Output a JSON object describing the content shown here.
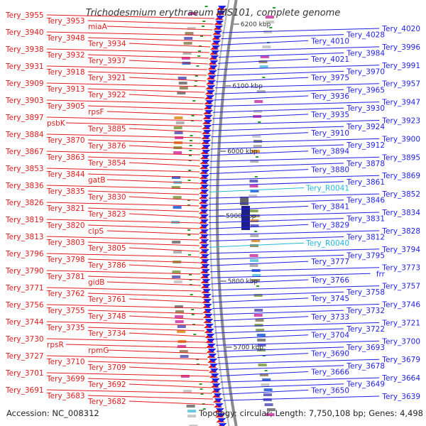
{
  "title": "Trichodesmium erythraeum IMS101, complete genome",
  "footer": {
    "accession": "Accession: NC_008312",
    "summary": "Topology: circular; Length: 7,750,108 bp; Genes: 4,498"
  },
  "colors": {
    "reverse_strand": "#e31a1c",
    "forward_strand": "#1f1fe6",
    "rna": "#22b7d8",
    "backbone": "#8c8c8c"
  },
  "scale_labels": [
    "6200 kbp",
    "6100 kbp",
    "6000 kbp",
    "5900 kbp",
    "5800 kbp",
    "5700 kbp"
  ],
  "left_labels": [
    "Tery_3955",
    "Tery_3953",
    "miaA",
    "Tery_3940",
    "Tery_3948",
    "Tery_3934",
    "Tery_3938",
    "Tery_3932",
    "Tery_3937",
    "Tery_3931",
    "Tery_3918",
    "Tery_3921",
    "Tery_3909",
    "Tery_3913",
    "Tery_3922",
    "Tery_3903",
    "Tery_3905",
    "rpsF",
    "Tery_3897",
    "psbK",
    "Tery_3885",
    "Tery_3884",
    "Tery_3870",
    "Tery_3876",
    "Tery_3867",
    "Tery_3863",
    "Tery_3854",
    "Tery_3853",
    "Tery_3844",
    "gatB",
    "Tery_3836",
    "Tery_3835",
    "Tery_3830",
    "Tery_3826",
    "Tery_3821",
    "Tery_3823",
    "Tery_3819",
    "Tery_3820",
    "clpS",
    "Tery_3813",
    "Tery_3803",
    "Tery_3805",
    "Tery_3796",
    "Tery_3798",
    "Tery_3786",
    "Tery_3790",
    "Tery_3781",
    "gidB",
    "Tery_3771",
    "Tery_3762",
    "Tery_3761",
    "Tery_3756",
    "Tery_3755",
    "Tery_3748",
    "Tery_3744",
    "Tery_3735",
    "Tery_3734",
    "Tery_3730",
    "rpsR",
    "rpmG",
    "Tery_3727",
    "Tery_3710",
    "Tery_3709",
    "Tery_3701",
    "Tery_3699",
    "Tery_3692",
    "Tery_3691",
    "Tery_3683",
    "Tery_3682"
  ],
  "right_labels": [
    "Tery_4020",
    "Tery_4028",
    "Tery_4010",
    "Tery_3996",
    "Tery_3984",
    "Tery_4021",
    "Tery_3991",
    "Tery_3970",
    "Tery_3975",
    "Tery_3957",
    "Tery_3965",
    "Tery_3936",
    "Tery_3947",
    "Tery_3930",
    "Tery_3935",
    "Tery_3923",
    "Tery_3924",
    "Tery_3910",
    "Tery_3900",
    "Tery_3912",
    "Tery_3894",
    "Tery_3895",
    "Tery_3878",
    "Tery_3880",
    "Tery_3869",
    "Tery_3861",
    "Tery_R0041",
    "Tery_3852",
    "Tery_3846",
    "Tery_3841",
    "Tery_3834",
    "Tery_3831",
    "Tery_3829",
    "Tery_3828",
    "Tery_3812",
    "Tery_R0040",
    "Tery_3794",
    "Tery_3795",
    "Tery_3777",
    "Tery_3773",
    "frr",
    "Tery_3766",
    "Tery_3757",
    "Tery_3758",
    "Tery_3745",
    "Tery_3746",
    "Tery_3732",
    "Tery_3733",
    "Tery_3721",
    "Tery_3722",
    "Tery_3704",
    "Tery_3700",
    "Tery_3693",
    "Tery_3690",
    "Tery_3679",
    "Tery_3678",
    "Tery_3666",
    "Tery_3664",
    "Tery_3649",
    "Tery_3650",
    "Tery_3639"
  ]
}
